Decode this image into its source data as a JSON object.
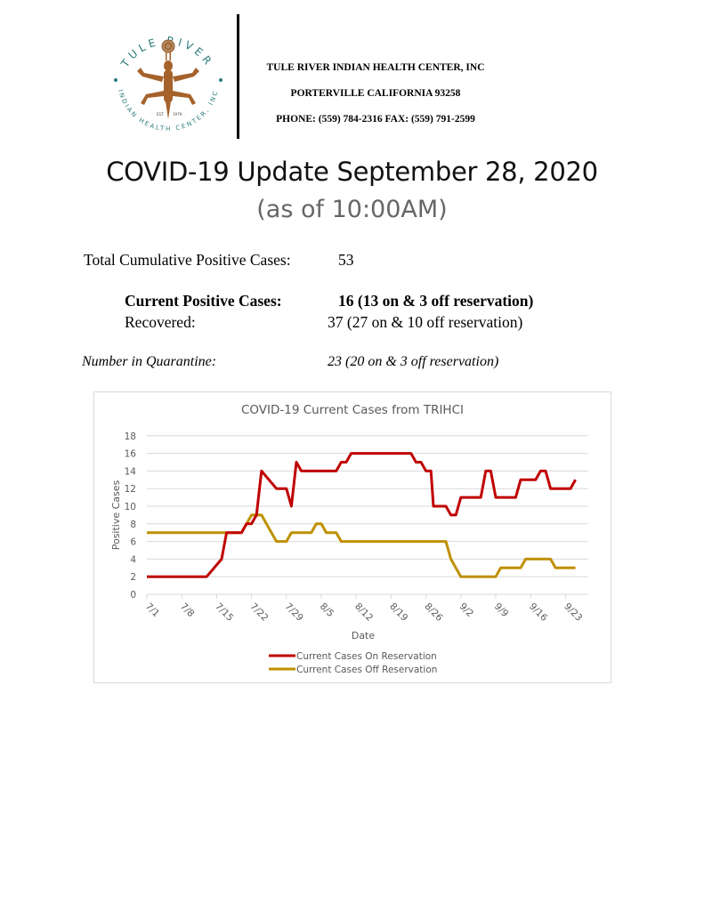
{
  "header": {
    "logo": {
      "arc_top": "TULE RIVER",
      "arc_bottom": "INDIAN HEALTH CENTER, INC",
      "est_left": "EST.",
      "est_right": "1979",
      "icon": "lizard-figure-icon"
    },
    "org_name": "TULE RIVER INDIAN HEALTH CENTER, INC",
    "org_city": "PORTERVILLE CALIFORNIA 93258",
    "org_contact": "PHONE: (559) 784-2316 FAX: (559) 791-2599"
  },
  "title": "COVID-19 Update September 28, 2020",
  "subtitle": "(as of 10:00AM)",
  "stats": {
    "cumulative_label": "Total Cumulative Positive Cases:",
    "cumulative_value": "53",
    "current_label": "Current Positive Cases:",
    "current_value": "16 (13 on & 3 off reservation)",
    "recovered_label": "Recovered:",
    "recovered_value": "37 (27 on & 10 off reservation)",
    "quarantine_label": "Number in Quarantine:",
    "quarantine_value": "23 (20 on & 3 off reservation)"
  },
  "chart_data": {
    "type": "line",
    "title": "COVID-19 Current Cases from TRIHCI",
    "xlabel": "Date",
    "ylabel": "Positive Cases",
    "ylim": [
      0,
      18
    ],
    "yticks": [
      0,
      2,
      4,
      6,
      8,
      10,
      12,
      14,
      16,
      18
    ],
    "xtick_labels": [
      "7/1",
      "7/8",
      "7/15",
      "7/22",
      "7/29",
      "8/5",
      "8/12",
      "8/19",
      "8/26",
      "9/2",
      "9/9",
      "9/16",
      "9/23"
    ],
    "x_unit": "days since 7/1",
    "grid": "horizontal",
    "legend_position": "bottom",
    "series": [
      {
        "name": "Current Cases On Reservation",
        "color": "#c00000",
        "points": [
          [
            0,
            2
          ],
          [
            12,
            2
          ],
          [
            15,
            4
          ],
          [
            16,
            7
          ],
          [
            19,
            7
          ],
          [
            20,
            8
          ],
          [
            21,
            8
          ],
          [
            22,
            9
          ],
          [
            23,
            14
          ],
          [
            26,
            12
          ],
          [
            28,
            12
          ],
          [
            29,
            10
          ],
          [
            30,
            15
          ],
          [
            31,
            14
          ],
          [
            38,
            14
          ],
          [
            39,
            15
          ],
          [
            40,
            15
          ],
          [
            41,
            16
          ],
          [
            53,
            16
          ],
          [
            54,
            15
          ],
          [
            55,
            15
          ],
          [
            56,
            14
          ],
          [
            57,
            14
          ],
          [
            57.5,
            10
          ],
          [
            60,
            10
          ],
          [
            61,
            9
          ],
          [
            62,
            9
          ],
          [
            63,
            11
          ],
          [
            67,
            11
          ],
          [
            68,
            14
          ],
          [
            69,
            14
          ],
          [
            70,
            11
          ],
          [
            74,
            11
          ],
          [
            75,
            13
          ],
          [
            78,
            13
          ],
          [
            79,
            14
          ],
          [
            80,
            14
          ],
          [
            81,
            12
          ],
          [
            85,
            12
          ],
          [
            86,
            13
          ]
        ]
      },
      {
        "name": "Current Cases Off Reservation",
        "color": "#bf9000",
        "points": [
          [
            0,
            7
          ],
          [
            19,
            7
          ],
          [
            20,
            8
          ],
          [
            21,
            9
          ],
          [
            23,
            9
          ],
          [
            26,
            6
          ],
          [
            28,
            6
          ],
          [
            29,
            7
          ],
          [
            33,
            7
          ],
          [
            34,
            8
          ],
          [
            35,
            8
          ],
          [
            36,
            7
          ],
          [
            38,
            7
          ],
          [
            39,
            6
          ],
          [
            60,
            6
          ],
          [
            61,
            4
          ],
          [
            63,
            2
          ],
          [
            70,
            2
          ],
          [
            71,
            3
          ],
          [
            75,
            3
          ],
          [
            76,
            4
          ],
          [
            81,
            4
          ],
          [
            82,
            3
          ],
          [
            86,
            3
          ]
        ]
      }
    ]
  }
}
